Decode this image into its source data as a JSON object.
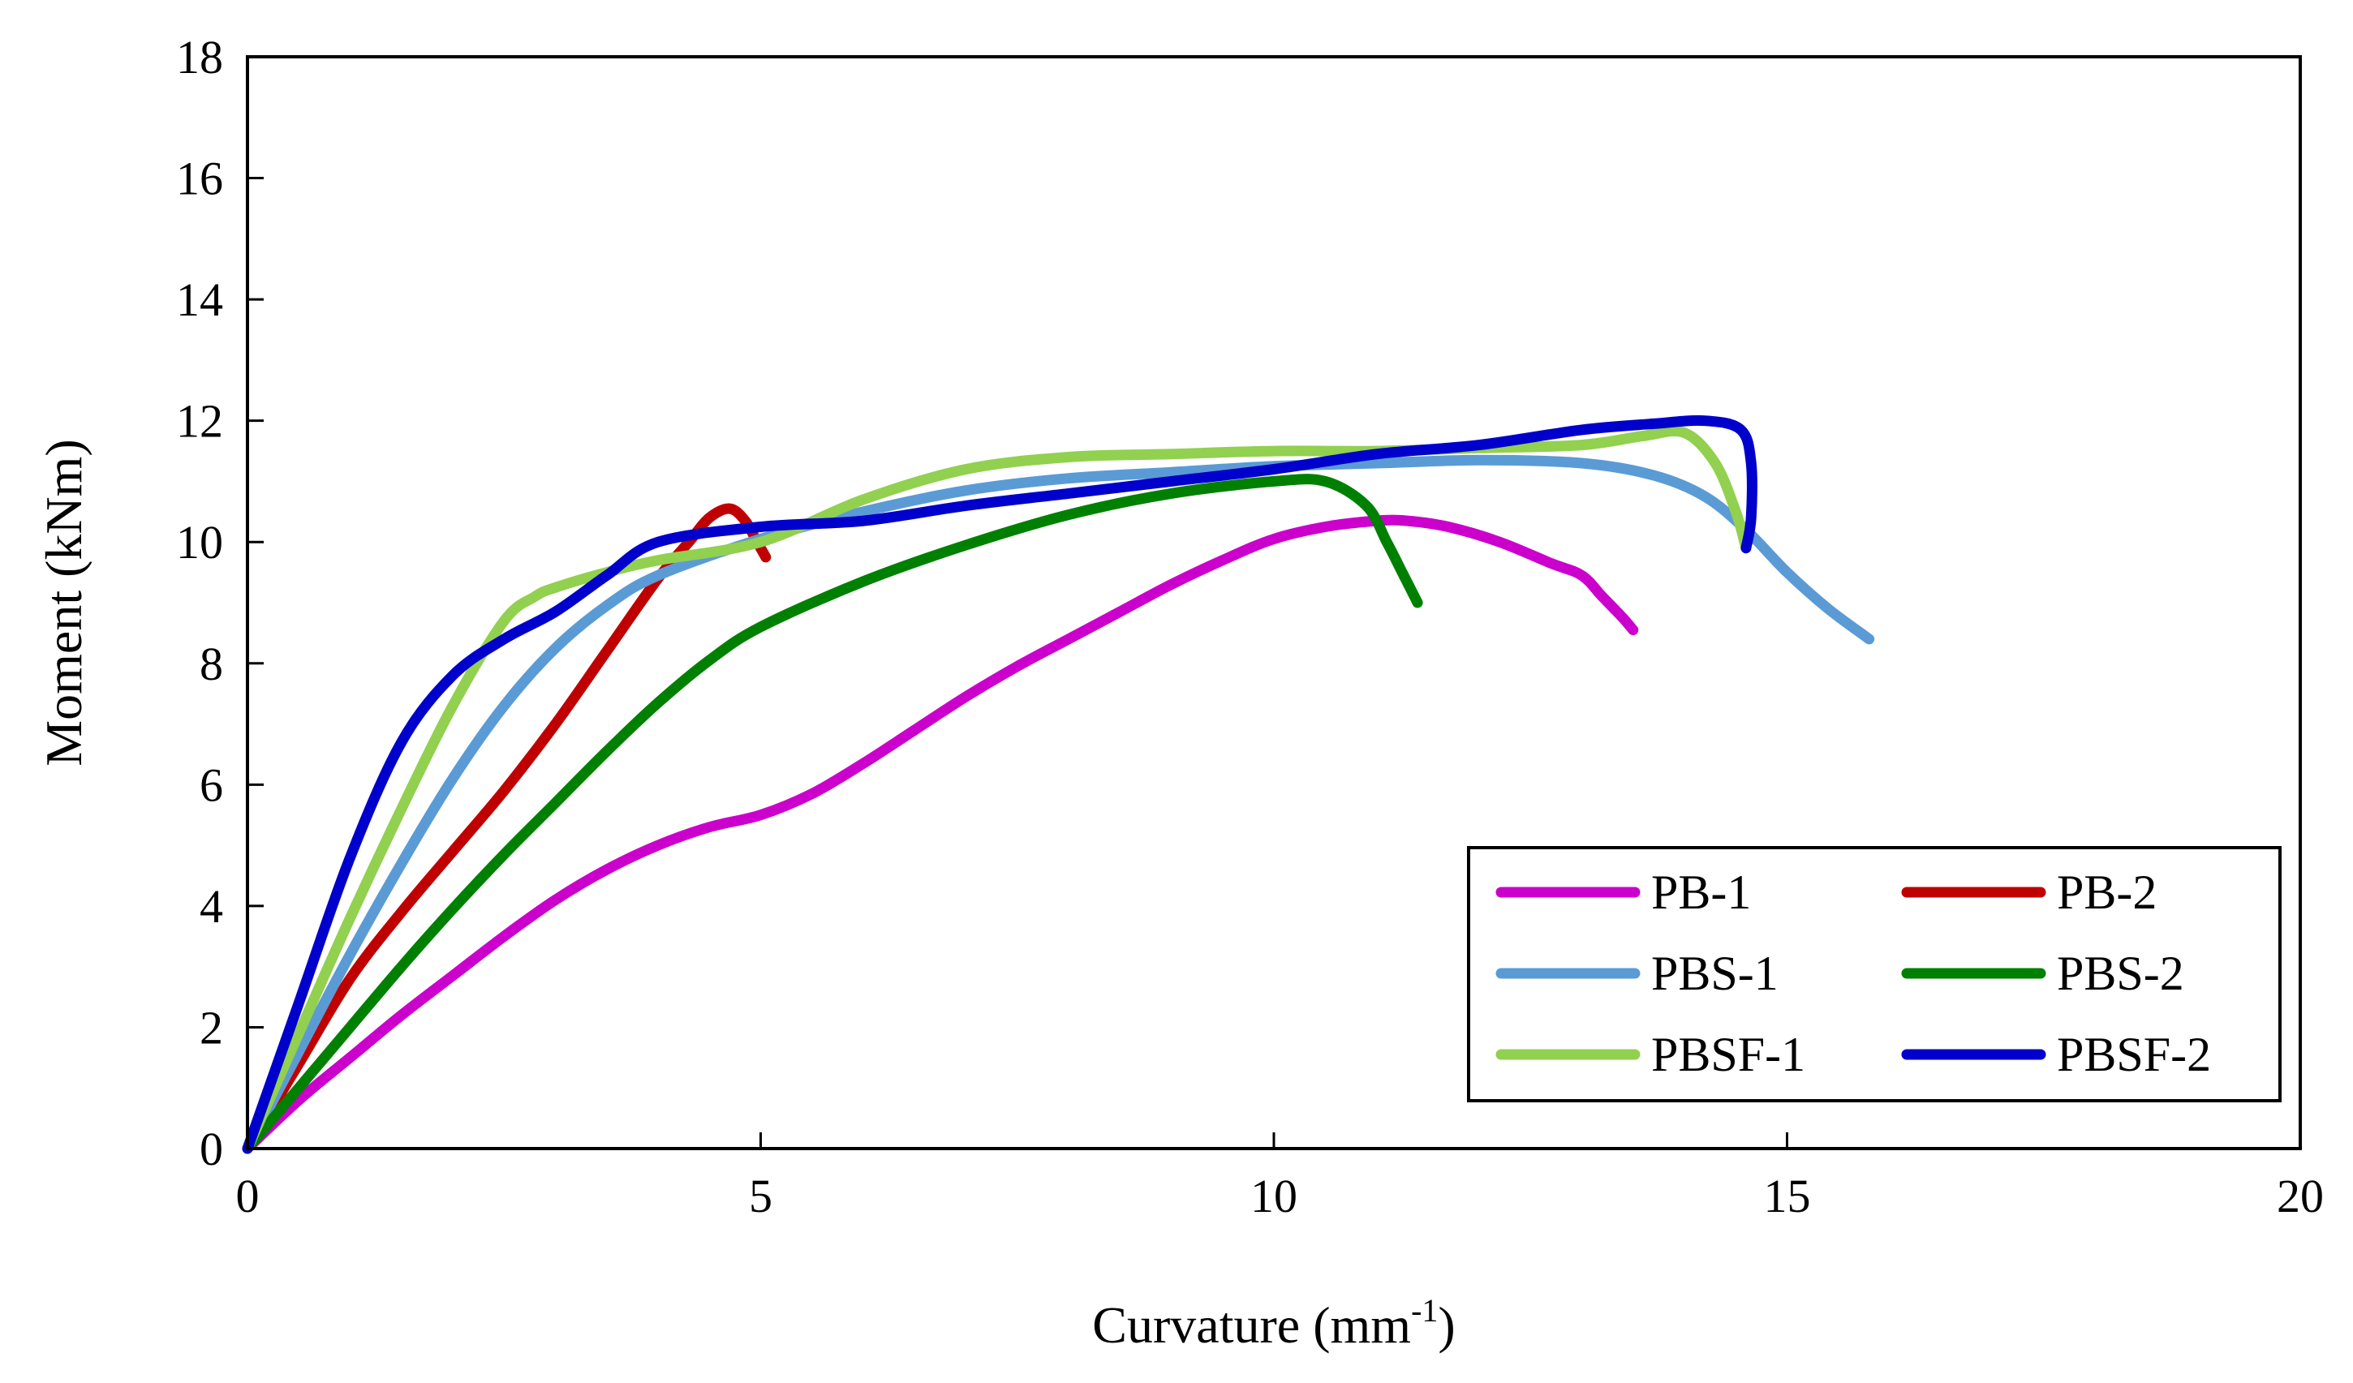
{
  "chart_data": {
    "type": "line",
    "title": "",
    "xlabel": "Curvature (mm",
    "xlabel_sup": "-1",
    "xlabel_suffix": ")",
    "ylabel": "Moment (kNm)",
    "xlim": [
      0,
      20
    ],
    "ylim": [
      0,
      18
    ],
    "xticks": [
      0,
      5,
      10,
      15,
      20
    ],
    "yticks": [
      0,
      2,
      4,
      6,
      8,
      10,
      12,
      14,
      16,
      18
    ],
    "grid": false,
    "legend": {
      "position": "bottom-right",
      "columns": 2
    },
    "series": [
      {
        "name": "PB-1",
        "color": "#CC00CC",
        "x": [
          0,
          0.5,
          1.0,
          1.5,
          2.0,
          2.5,
          3.0,
          3.5,
          4.0,
          4.5,
          5.0,
          5.5,
          6.0,
          6.5,
          7.0,
          7.5,
          8.0,
          8.5,
          9.0,
          9.5,
          10.0,
          10.5,
          11.0,
          11.3,
          11.7,
          12.2,
          12.7,
          13.0,
          13.2,
          13.4,
          13.5
        ],
        "y": [
          0,
          0.8,
          1.5,
          2.2,
          2.85,
          3.5,
          4.1,
          4.6,
          5.0,
          5.3,
          5.5,
          5.85,
          6.35,
          6.9,
          7.45,
          7.95,
          8.4,
          8.85,
          9.3,
          9.7,
          10.05,
          10.25,
          10.35,
          10.35,
          10.25,
          10.0,
          9.65,
          9.45,
          9.1,
          8.75,
          8.55
        ]
      },
      {
        "name": "PB-2",
        "color": "#C00000",
        "x": [
          0,
          0.5,
          1.0,
          1.5,
          2.0,
          2.5,
          3.0,
          3.5,
          4.0,
          4.3,
          4.5,
          4.7,
          4.85,
          4.95,
          5.05
        ],
        "y": [
          0,
          1.4,
          2.8,
          3.9,
          4.9,
          5.9,
          7.0,
          8.2,
          9.4,
          10.0,
          10.4,
          10.55,
          10.35,
          10.05,
          9.75
        ]
      },
      {
        "name": "PBS-1",
        "color": "#5B9BD5",
        "x": [
          0,
          0.5,
          1.0,
          1.5,
          2.0,
          2.5,
          3.0,
          3.5,
          4.0,
          5.0,
          6.0,
          7.0,
          8.0,
          9.0,
          10.0,
          11.0,
          12.0,
          13.0,
          13.7,
          14.2,
          14.6,
          15.0,
          15.4,
          15.8
        ],
        "y": [
          0,
          1.6,
          3.2,
          4.7,
          6.1,
          7.3,
          8.25,
          8.95,
          9.45,
          10.05,
          10.5,
          10.85,
          11.05,
          11.15,
          11.25,
          11.3,
          11.35,
          11.3,
          11.1,
          10.75,
          10.2,
          9.5,
          8.9,
          8.4
        ]
      },
      {
        "name": "PBS-2",
        "color": "#008000",
        "x": [
          0,
          0.5,
          1.0,
          1.5,
          2.0,
          2.5,
          3.0,
          3.5,
          4.0,
          4.5,
          5.0,
          6.0,
          7.0,
          8.0,
          9.0,
          10.0,
          10.5,
          10.9,
          11.1,
          11.25,
          11.4
        ],
        "y": [
          0,
          1.0,
          2.0,
          3.0,
          3.95,
          4.85,
          5.7,
          6.55,
          7.35,
          8.05,
          8.6,
          9.35,
          9.95,
          10.45,
          10.8,
          11.0,
          11.0,
          10.6,
          10.0,
          9.5,
          9.0
        ]
      },
      {
        "name": "PBSF-1",
        "color": "#92D050",
        "x": [
          0,
          0.5,
          1.0,
          1.5,
          2.0,
          2.5,
          2.8,
          3.0,
          3.5,
          4.0,
          5.0,
          6.0,
          7.0,
          8.0,
          9.0,
          10.0,
          11.0,
          12.0,
          13.0,
          13.6,
          14.0,
          14.3,
          14.5,
          14.6
        ],
        "y": [
          0,
          1.9,
          3.8,
          5.6,
          7.3,
          8.7,
          9.1,
          9.25,
          9.5,
          9.7,
          10.0,
          10.7,
          11.2,
          11.4,
          11.45,
          11.5,
          11.5,
          11.55,
          11.6,
          11.75,
          11.8,
          11.3,
          10.5,
          9.9
        ]
      },
      {
        "name": "PBSF-2",
        "color": "#0000CC",
        "x": [
          0,
          0.5,
          1.0,
          1.5,
          2.0,
          2.5,
          3.0,
          3.5,
          4.0,
          5.0,
          6.0,
          7.0,
          8.0,
          9.0,
          10.0,
          11.0,
          12.0,
          13.0,
          13.7,
          14.2,
          14.55,
          14.65,
          14.65,
          14.6
        ],
        "y": [
          0,
          2.4,
          4.8,
          6.7,
          7.8,
          8.4,
          8.85,
          9.45,
          10.0,
          10.25,
          10.35,
          10.6,
          10.8,
          11.0,
          11.2,
          11.45,
          11.6,
          11.85,
          11.95,
          12.0,
          11.85,
          11.3,
          10.4,
          9.9
        ]
      }
    ]
  }
}
